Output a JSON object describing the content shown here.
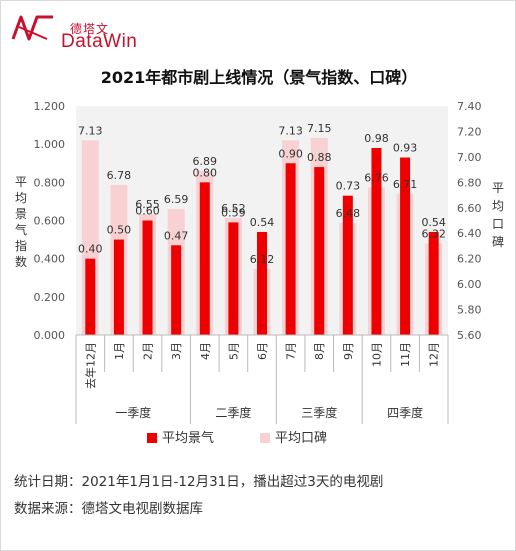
{
  "brand": {
    "name_cn": "德塔文",
    "name_en": "DataWin"
  },
  "title": "2021年都市剧上线情况（景气指数、口碑）",
  "chart_data": {
    "type": "bar",
    "title": "2021年都市剧上线情况（景气指数、口碑）",
    "categories": [
      "去年12月",
      "1月",
      "2月",
      "3月",
      "4月",
      "5月",
      "6月",
      "7月",
      "8月",
      "9月",
      "10月",
      "11月",
      "12月"
    ],
    "groups": [
      {
        "label": "一季度",
        "from": 0,
        "to": 3
      },
      {
        "label": "二季度",
        "from": 4,
        "to": 6
      },
      {
        "label": "三季度",
        "from": 7,
        "to": 9
      },
      {
        "label": "四季度",
        "from": 10,
        "to": 12
      }
    ],
    "series": [
      {
        "name": "平均景气",
        "axis": "left",
        "color": "#ee0000",
        "values": [
          0.4,
          0.5,
          0.6,
          0.47,
          0.8,
          0.59,
          0.54,
          0.9,
          0.88,
          0.73,
          0.98,
          0.93,
          0.54
        ],
        "labels": [
          "0.40",
          "0.50",
          "0.60",
          "0.47",
          "0.80",
          "0.59",
          "0.54",
          "0.90",
          "0.88",
          "0.73",
          "0.98",
          "0.93",
          "0.54"
        ]
      },
      {
        "name": "平均口碑",
        "axis": "right",
        "color": "#f8d2d2",
        "values": [
          7.13,
          6.78,
          6.55,
          6.59,
          6.89,
          6.52,
          6.12,
          7.13,
          7.15,
          6.48,
          6.76,
          6.71,
          6.32
        ],
        "labels": [
          "7.13",
          "6.78",
          "6.55",
          "6.59",
          "6.89",
          "6.52",
          "6.12",
          "7.13",
          "7.15",
          "6.48",
          "6.76",
          "6.71",
          "6.32"
        ]
      }
    ],
    "ylabel": "平均景气指数",
    "y2label": "平均口碑",
    "ylim": [
      0,
      1.2
    ],
    "y2lim": [
      5.6,
      7.4
    ],
    "yticks": [
      "1.200",
      "1.000",
      "0.800",
      "0.600",
      "0.400",
      "0.200",
      "0.000"
    ],
    "y2ticks": [
      "7.40",
      "7.20",
      "7.00",
      "6.80",
      "6.60",
      "6.40",
      "6.20",
      "6.00",
      "5.80",
      "5.60"
    ],
    "legend_position": "bottom",
    "plot_background": "#f2f2f2",
    "grid": false
  },
  "footer": {
    "stat_line": "统计日期：2021年1月1日-12月31日，播出超过3天的电视剧",
    "source_line": "数据来源：德塔文电视剧数据库"
  }
}
